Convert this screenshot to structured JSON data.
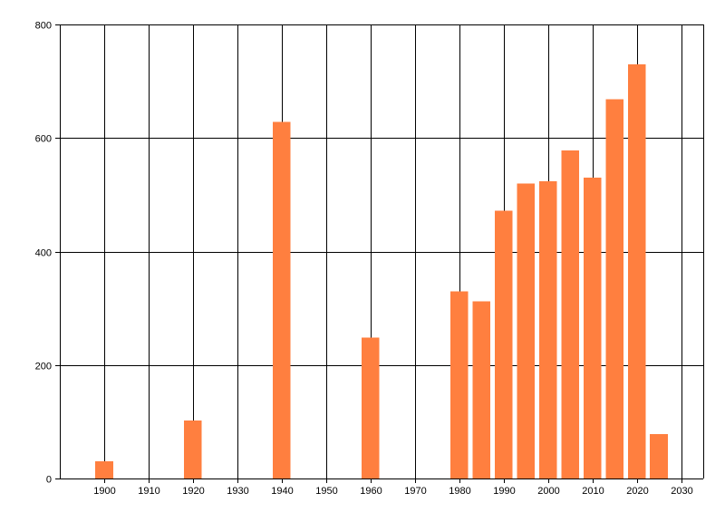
{
  "chart_data": {
    "type": "bar",
    "x": [
      1900,
      1920,
      1940,
      1960,
      1980,
      1985,
      1990,
      1995,
      2000,
      2005,
      2010,
      2015,
      2020,
      2025
    ],
    "values": [
      30,
      102,
      628,
      248,
      330,
      312,
      472,
      520,
      524,
      578,
      530,
      668,
      730,
      78
    ],
    "xlim": [
      1890,
      2035
    ],
    "ylim": [
      0,
      800
    ],
    "x_ticks": [
      1900,
      1910,
      1920,
      1930,
      1940,
      1950,
      1960,
      1970,
      1980,
      1990,
      2000,
      2010,
      2020,
      2030
    ],
    "y_ticks": [
      0,
      200,
      400,
      600,
      800
    ],
    "title": "",
    "xlabel": "",
    "ylabel": "",
    "grid": true,
    "legend": "none",
    "bar_color": "#ff7f3f"
  }
}
